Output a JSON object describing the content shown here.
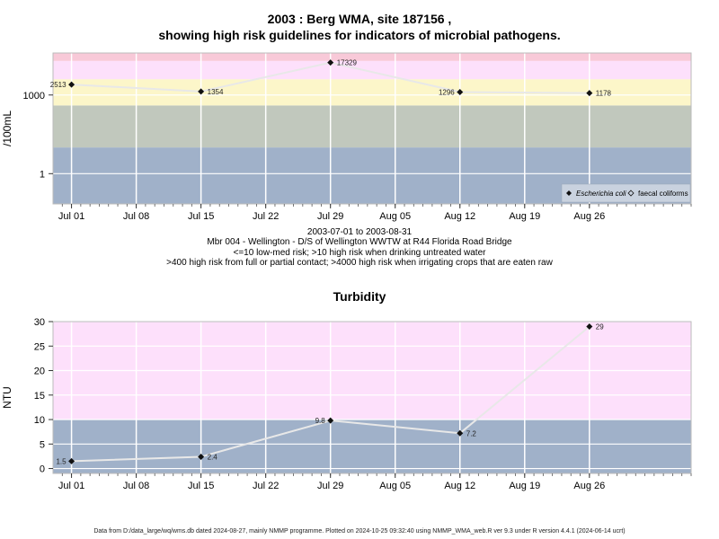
{
  "header": {
    "title_line1": "2003 : Berg WMA, site 187156 ,",
    "title_line2": "showing high risk guidelines for indicators of microbial pathogens."
  },
  "caption": {
    "line1": "2003-07-01 to 2003-08-31",
    "line2": "Mbr 004 - Wellington - D/S of Wellington WWTW at R44 Florida Road Bridge",
    "line3": "<=10 low-med risk; >10 high risk when drinking untreated water",
    "line4": ">400 high risk from full or partial contact; >4000 high risk when irrigating crops that are eaten raw"
  },
  "footer": {
    "text": "Data from D:/data_large/wq/wms.db dated 2024-08-27, mainly NMMP programme. Plotted on 2024-10-25 09:32:40 using NMMP_WMA_web.R ver 9.3 under R version 4.4.1 (2024-06-14 ucrt)"
  },
  "colors": {
    "red_band": "#f8c9d8",
    "pink_band": "#fde0fb",
    "yellow_band": "#fcf6c9",
    "sage_band": "#c1c8bd",
    "blue_band": "#a0b1c9",
    "grid": "#ffffff",
    "line": "#e8e8e8",
    "marker": "#111111"
  },
  "chart_data": [
    {
      "type": "line",
      "title": "",
      "ylabel": "/100mL",
      "yscale": "log",
      "yticks": [
        1,
        1000
      ],
      "ylim": [
        0.07,
        40000
      ],
      "xlim": [
        "2003-06-29",
        "2003-09-06"
      ],
      "x_tick_labels": [
        "Jul 01",
        "Jul 08",
        "Jul 15",
        "Jul 22",
        "Jul 29",
        "Aug 05",
        "Aug 12",
        "Aug 19",
        "Aug 26"
      ],
      "x_ticks": [
        "2003-07-01",
        "2003-07-08",
        "2003-07-15",
        "2003-07-22",
        "2003-07-29",
        "2003-08-05",
        "2003-08-12",
        "2003-08-19",
        "2003-08-26"
      ],
      "bands": [
        {
          "from": 0.07,
          "to": 10,
          "color": "blue_band"
        },
        {
          "from": 10,
          "to": 400,
          "color": "sage_band"
        },
        {
          "from": 400,
          "to": 4000,
          "color": "yellow_band"
        },
        {
          "from": 4000,
          "to": 20000,
          "color": "pink_band"
        },
        {
          "from": 20000,
          "to": 40000,
          "color": "red_band"
        }
      ],
      "legend": {
        "placement": "bottom-right",
        "entries": [
          "Escherichia coli",
          "faecal coliforms"
        ]
      },
      "series": [
        {
          "name": "Escherichia coli",
          "x": [
            "2003-07-01",
            "2003-07-15",
            "2003-07-29",
            "2003-08-12",
            "2003-08-26"
          ],
          "values": [
            2513,
            1354,
            17329,
            1296,
            1178
          ],
          "labels": [
            "2513",
            "1354",
            "17329",
            "1296",
            "1178"
          ]
        }
      ]
    },
    {
      "type": "line",
      "title": "Turbidity",
      "ylabel": "NTU",
      "yticks": [
        0,
        5,
        10,
        15,
        20,
        25,
        30
      ],
      "ylim": [
        -1,
        30
      ],
      "xlim": [
        "2003-06-29",
        "2003-09-06"
      ],
      "x_tick_labels": [
        "Jul 01",
        "Jul 08",
        "Jul 15",
        "Jul 22",
        "Jul 29",
        "Aug 05",
        "Aug 12",
        "Aug 19",
        "Aug 26"
      ],
      "x_ticks": [
        "2003-07-01",
        "2003-07-08",
        "2003-07-15",
        "2003-07-22",
        "2003-07-29",
        "2003-08-05",
        "2003-08-12",
        "2003-08-19",
        "2003-08-26"
      ],
      "bands": [
        {
          "from": -1,
          "to": 10,
          "color": "blue_band"
        },
        {
          "from": 10,
          "to": 30,
          "color": "pink_band"
        }
      ],
      "series": [
        {
          "x": [
            "2003-07-01",
            "2003-07-15",
            "2003-07-29",
            "2003-08-12",
            "2003-08-26"
          ],
          "values": [
            1.5,
            2.4,
            9.8,
            7.2,
            29
          ],
          "labels": [
            "1.5",
            "2.4",
            "9.8",
            "7.2",
            "29"
          ]
        }
      ]
    }
  ]
}
